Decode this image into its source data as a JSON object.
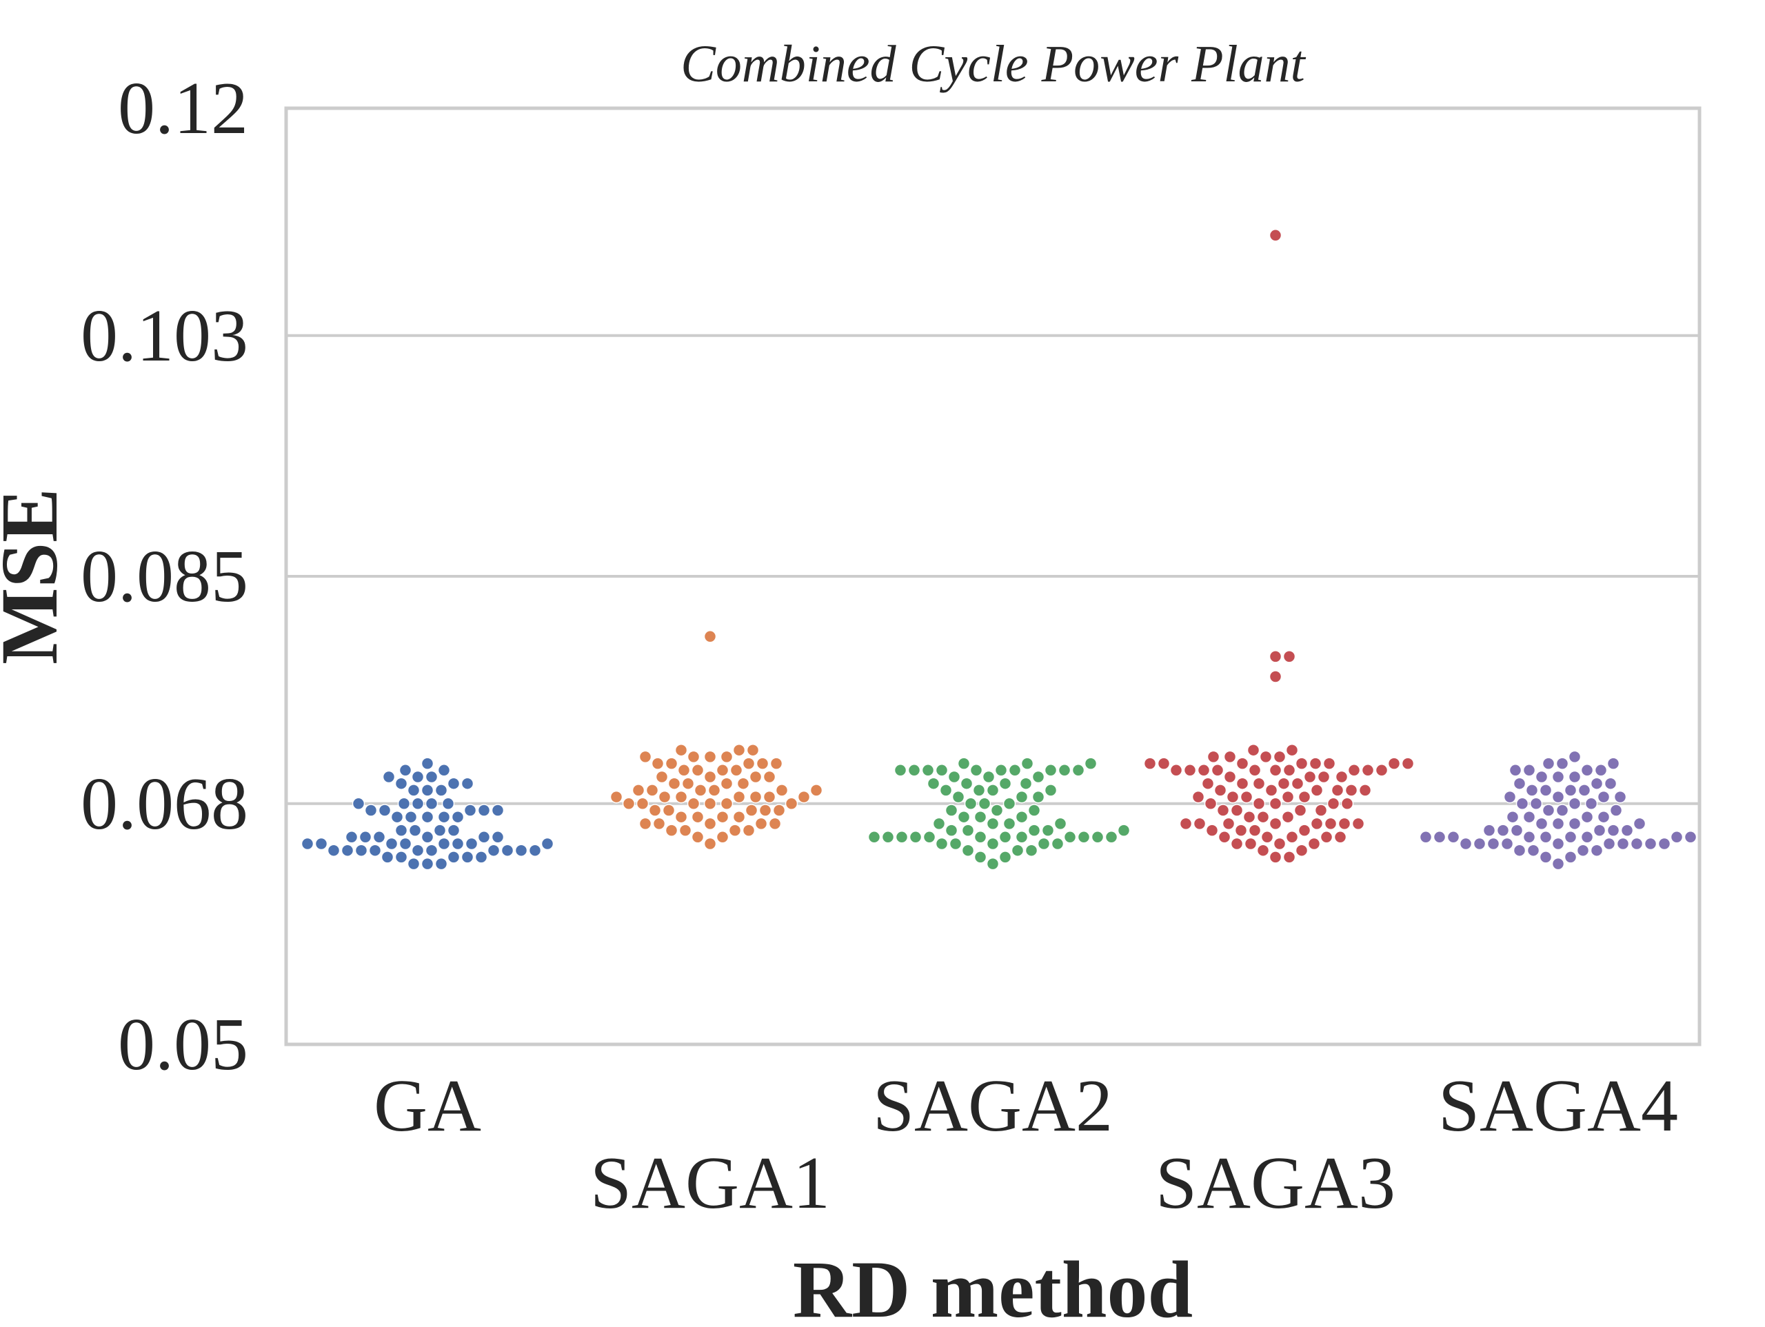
{
  "chart_data": {
    "type": "scatter",
    "subtype": "swarm",
    "title": "Combined Cycle Power Plant",
    "xlabel": "RD method",
    "ylabel": "MSE",
    "categories": [
      "GA",
      "SAGA1",
      "SAGA2",
      "SAGA3",
      "SAGA4"
    ],
    "yticks": [
      "0.05",
      "0.068",
      "0.085",
      "0.103",
      "0.12"
    ],
    "ylim": [
      0.05,
      0.12
    ],
    "grid": "horizontal",
    "legend": "none",
    "colors": [
      "#4C72B0",
      "#DD8452",
      "#55A868",
      "#C44E52",
      "#8172B3"
    ],
    "series": [
      {
        "values": [
          0.071,
          0.0705,
          0.0705,
          0.07,
          0.07,
          0.07,
          0.0695,
          0.0695,
          0.0695,
          0.069,
          0.069,
          0.069,
          0.068,
          0.068,
          0.068,
          0.068,
          0.068,
          0.0675,
          0.0675,
          0.0675,
          0.0675,
          0.0675,
          0.067,
          0.067,
          0.067,
          0.067,
          0.067,
          0.066,
          0.066,
          0.066,
          0.066,
          0.0655,
          0.0655,
          0.0655,
          0.0655,
          0.0655,
          0.0655,
          0.065,
          0.065,
          0.065,
          0.065,
          0.065,
          0.065,
          0.065,
          0.065,
          0.0645,
          0.0645,
          0.0645,
          0.0645,
          0.0645,
          0.0645,
          0.0645,
          0.0645,
          0.0645,
          0.0645,
          0.064,
          0.064,
          0.064,
          0.064,
          0.064,
          0.0635,
          0.0635,
          0.0635
        ]
      },
      {
        "values": [
          0.0805,
          0.072,
          0.072,
          0.072,
          0.0715,
          0.0715,
          0.0715,
          0.0715,
          0.071,
          0.071,
          0.071,
          0.071,
          0.071,
          0.0705,
          0.0705,
          0.0705,
          0.0705,
          0.07,
          0.07,
          0.07,
          0.07,
          0.0695,
          0.0695,
          0.0695,
          0.0695,
          0.069,
          0.069,
          0.069,
          0.069,
          0.069,
          0.069,
          0.0685,
          0.0685,
          0.0685,
          0.0685,
          0.0685,
          0.0685,
          0.0685,
          0.068,
          0.068,
          0.068,
          0.068,
          0.068,
          0.068,
          0.0675,
          0.0675,
          0.0675,
          0.0675,
          0.0675,
          0.067,
          0.067,
          0.067,
          0.067,
          0.0665,
          0.0665,
          0.0665,
          0.0665,
          0.0665,
          0.066,
          0.066,
          0.066,
          0.066,
          0.0655,
          0.0655,
          0.065
        ]
      },
      {
        "values": [
          0.071,
          0.071,
          0.071,
          0.0705,
          0.0705,
          0.0705,
          0.0705,
          0.0705,
          0.0705,
          0.0705,
          0.0705,
          0.0705,
          0.0705,
          0.07,
          0.07,
          0.07,
          0.0695,
          0.0695,
          0.0695,
          0.0695,
          0.069,
          0.069,
          0.069,
          0.069,
          0.0685,
          0.0685,
          0.0685,
          0.068,
          0.068,
          0.068,
          0.0675,
          0.0675,
          0.0675,
          0.067,
          0.067,
          0.067,
          0.0665,
          0.0665,
          0.0665,
          0.0665,
          0.066,
          0.066,
          0.066,
          0.066,
          0.066,
          0.0655,
          0.0655,
          0.0655,
          0.0655,
          0.0655,
          0.0655,
          0.0655,
          0.0655,
          0.0655,
          0.0655,
          0.0655,
          0.0655,
          0.065,
          0.065,
          0.065,
          0.065,
          0.065,
          0.0645,
          0.0645,
          0.0645,
          0.064,
          0.064,
          0.0635
        ]
      },
      {
        "values": [
          0.1105,
          0.079,
          0.079,
          0.0775,
          0.072,
          0.072,
          0.0715,
          0.0715,
          0.0715,
          0.0715,
          0.071,
          0.071,
          0.071,
          0.071,
          0.071,
          0.071,
          0.071,
          0.071,
          0.0705,
          0.0705,
          0.0705,
          0.0705,
          0.0705,
          0.0705,
          0.0705,
          0.0705,
          0.0705,
          0.0705,
          0.07,
          0.07,
          0.07,
          0.07,
          0.0695,
          0.0695,
          0.0695,
          0.0695,
          0.0695,
          0.069,
          0.069,
          0.069,
          0.069,
          0.069,
          0.069,
          0.0685,
          0.0685,
          0.0685,
          0.0685,
          0.0685,
          0.068,
          0.068,
          0.068,
          0.068,
          0.068,
          0.0675,
          0.0675,
          0.0675,
          0.0675,
          0.067,
          0.067,
          0.067,
          0.0665,
          0.0665,
          0.0665,
          0.0665,
          0.0665,
          0.0665,
          0.0665,
          0.0665,
          0.066,
          0.066,
          0.066,
          0.066,
          0.0655,
          0.0655,
          0.0655,
          0.0655,
          0.0655,
          0.065,
          0.065,
          0.065,
          0.065,
          0.0645,
          0.0645,
          0.064,
          0.064
        ]
      },
      {
        "values": [
          0.0715,
          0.071,
          0.071,
          0.071,
          0.0705,
          0.0705,
          0.0705,
          0.0705,
          0.07,
          0.07,
          0.07,
          0.0695,
          0.0695,
          0.0695,
          0.069,
          0.069,
          0.069,
          0.069,
          0.0685,
          0.0685,
          0.0685,
          0.0685,
          0.068,
          0.068,
          0.068,
          0.068,
          0.0675,
          0.0675,
          0.0675,
          0.067,
          0.067,
          0.067,
          0.067,
          0.0665,
          0.0665,
          0.0665,
          0.0665,
          0.066,
          0.066,
          0.066,
          0.066,
          0.066,
          0.066,
          0.0655,
          0.0655,
          0.0655,
          0.0655,
          0.0655,
          0.0655,
          0.0655,
          0.0655,
          0.0655,
          0.065,
          0.065,
          0.065,
          0.065,
          0.065,
          0.065,
          0.065,
          0.065,
          0.065,
          0.065,
          0.0645,
          0.0645,
          0.0645,
          0.0645,
          0.064,
          0.064,
          0.0635
        ]
      }
    ]
  }
}
